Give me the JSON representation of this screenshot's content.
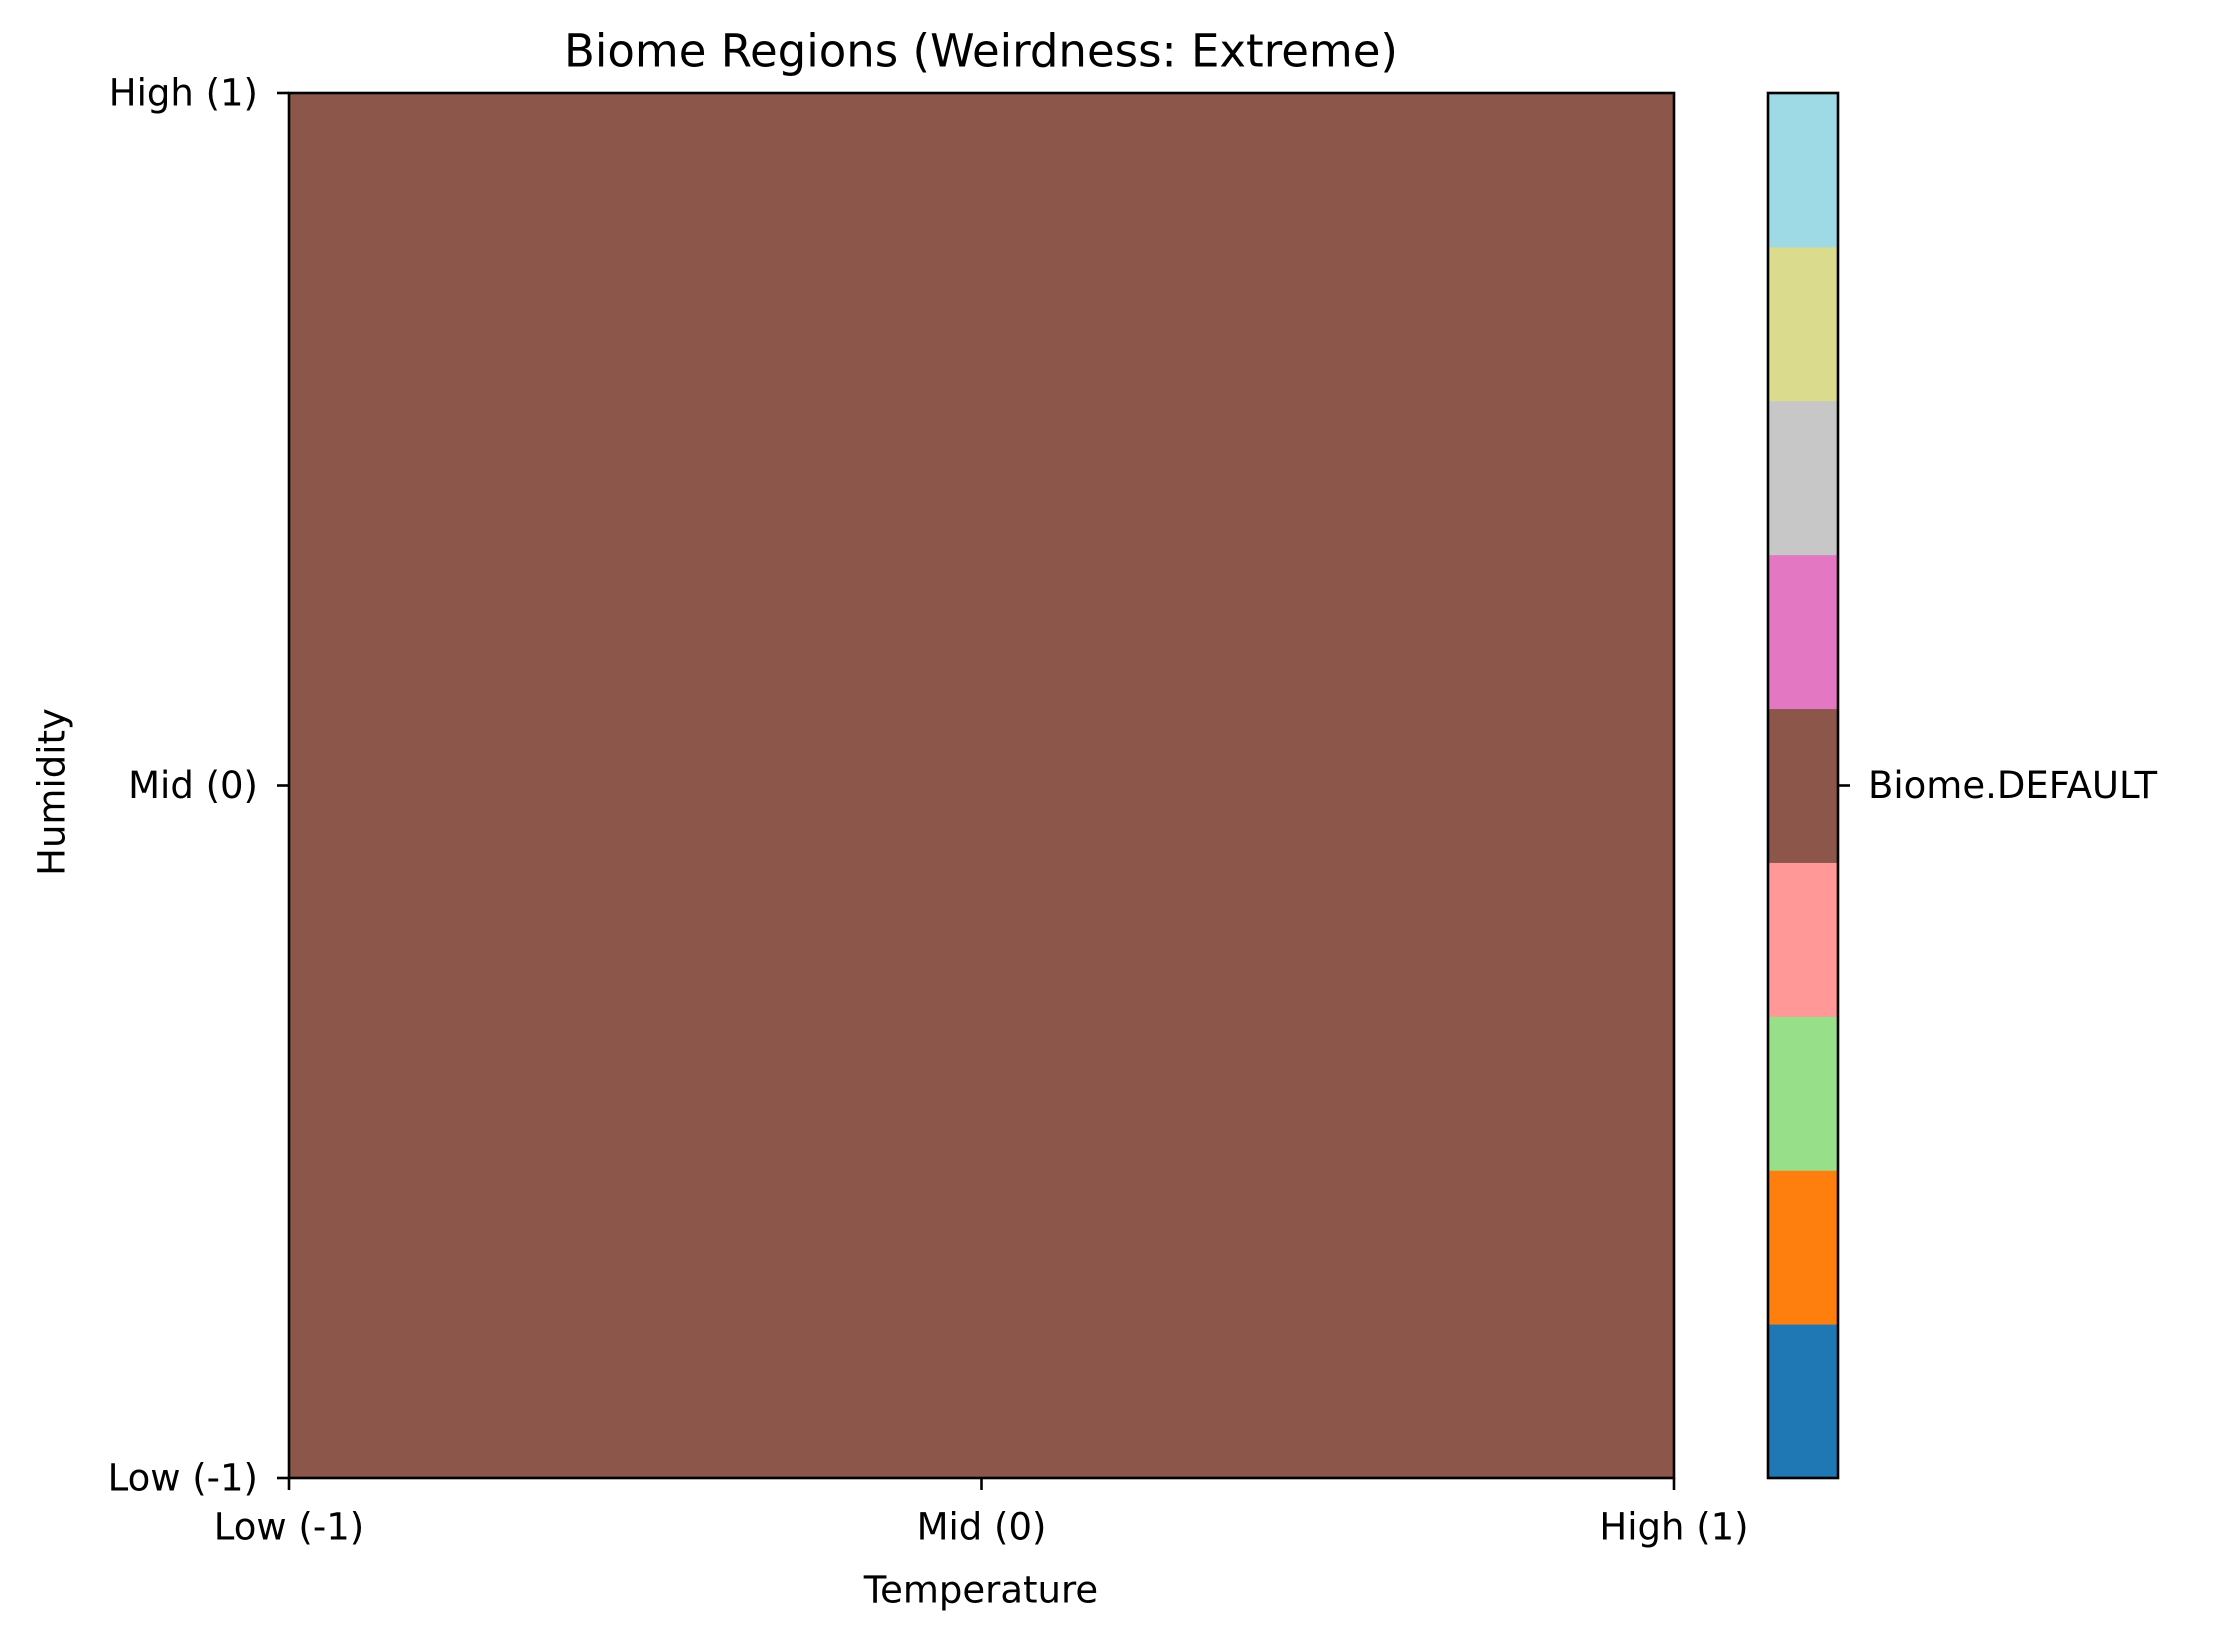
{
  "chart_data": {
    "type": "heatmap",
    "title": "Biome Regions (Weirdness: Extreme)",
    "xlabel": "Temperature",
    "ylabel": "Humidity",
    "x_ticks": [
      {
        "value": -1,
        "label": "Low (-1)"
      },
      {
        "value": 0,
        "label": "Mid (0)"
      },
      {
        "value": 1,
        "label": "High (1)"
      }
    ],
    "y_ticks": [
      {
        "value": 1,
        "label": "High (1)"
      },
      {
        "value": 0,
        "label": "Mid (0)"
      },
      {
        "value": -1,
        "label": "Low (-1)"
      }
    ],
    "xlim": [
      -1,
      1
    ],
    "ylim": [
      -1,
      1
    ],
    "grid": false,
    "regions": [
      {
        "biome": "Biome.DEFAULT",
        "x_range": [
          -1,
          1
        ],
        "y_range": [
          -1,
          1
        ],
        "color": "#8c564b"
      }
    ],
    "colorbar": {
      "segments": [
        "#1f77b4",
        "#ff7f0e",
        "#98df8a",
        "#ff9896",
        "#8c564b",
        "#e377c2",
        "#c7c7c7",
        "#dbdb8d",
        "#9edae5"
      ],
      "tick_labels": [
        {
          "segment_index": 4,
          "label": "Biome.DEFAULT"
        }
      ]
    }
  }
}
